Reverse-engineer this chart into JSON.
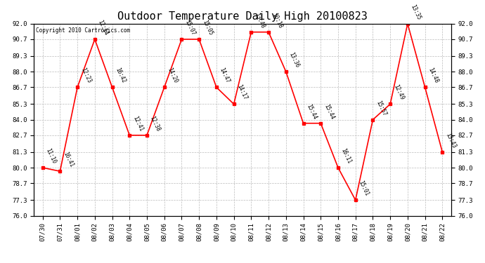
{
  "title": "Outdoor Temperature Daily High 20100823",
  "copyright": "Copyright 2010 Cartronics.com",
  "x_labels": [
    "07/30",
    "07/31",
    "08/01",
    "08/02",
    "08/03",
    "08/04",
    "08/05",
    "08/06",
    "08/07",
    "08/08",
    "08/09",
    "08/10",
    "08/11",
    "08/12",
    "08/13",
    "08/14",
    "08/15",
    "08/16",
    "08/17",
    "08/18",
    "08/19",
    "08/20",
    "08/21",
    "08/22"
  ],
  "y_values": [
    80.0,
    79.7,
    86.7,
    90.7,
    86.7,
    82.7,
    82.7,
    86.7,
    90.7,
    90.7,
    86.7,
    85.3,
    91.3,
    91.3,
    88.0,
    83.7,
    83.7,
    80.0,
    77.3,
    84.0,
    85.3,
    92.0,
    86.7,
    81.3
  ],
  "time_labels": [
    "11:10",
    "16:41",
    "12:23",
    "12:14",
    "16:42",
    "12:41",
    "12:38",
    "14:20",
    "15:07",
    "15:05",
    "14:47",
    "14:17",
    "13:48",
    "10:18",
    "13:36",
    "15:44",
    "15:44",
    "16:11",
    "15:01",
    "15:57",
    "12:49",
    "13:35",
    "14:48",
    "13:43"
  ],
  "y_min": 76.0,
  "y_max": 92.0,
  "y_ticks": [
    76.0,
    77.3,
    78.7,
    80.0,
    81.3,
    82.7,
    84.0,
    85.3,
    86.7,
    88.0,
    89.3,
    90.7,
    92.0
  ],
  "line_color": "red",
  "marker_color": "red",
  "background_color": "white",
  "grid_color": "#bbbbbb",
  "title_fontsize": 11,
  "figwidth": 6.9,
  "figheight": 3.75,
  "dpi": 100
}
